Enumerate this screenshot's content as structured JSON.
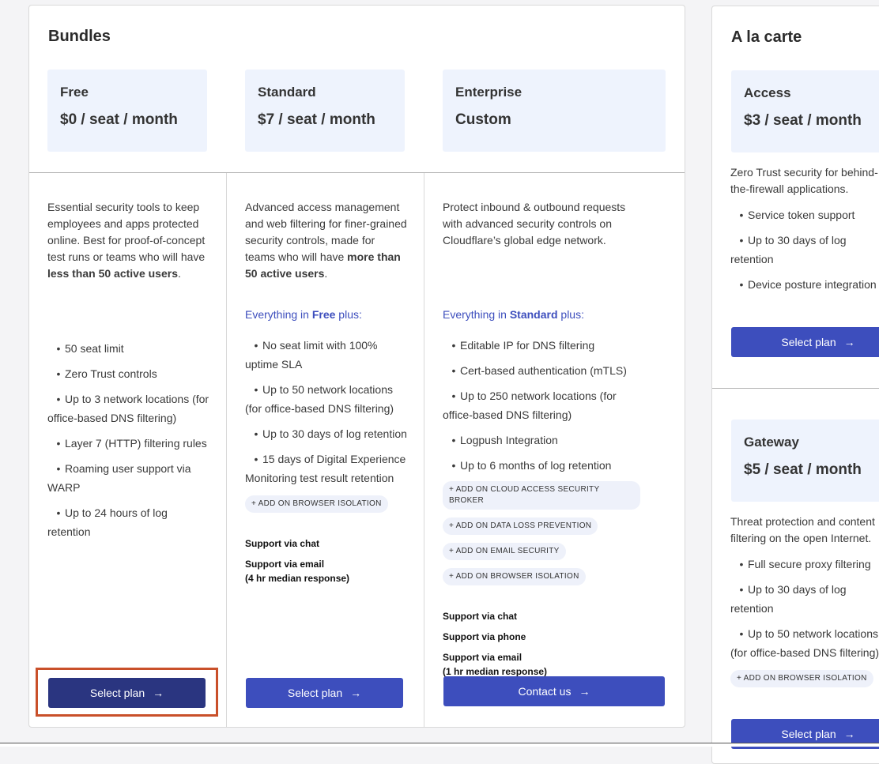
{
  "bundles": {
    "title": "Bundles",
    "plans": [
      {
        "name": "Free",
        "price": "$0 / seat / month",
        "desc_pre": "Essential security tools to keep employees and apps protected online. Best for proof-of-concept test runs or teams who will have ",
        "desc_bold": "less than 50 active users",
        "desc_post": ".",
        "features": [
          "50 seat limit",
          "Zero Trust controls",
          "Up to 3 network locations (for office-based DNS filtering)",
          "Layer 7 (HTTP) filtering rules",
          "Roaming user support via WARP",
          "Up to 24 hours of log retention"
        ],
        "button": "Select plan",
        "selected": true
      },
      {
        "name": "Standard",
        "price": "$7 / seat / month",
        "desc_pre": "Advanced access management and web filtering for finer-grained security controls, made for teams who will have ",
        "desc_bold": "more than 50 active users",
        "desc_post": ".",
        "everything_pre": "Everything in ",
        "everything_bold": "Free",
        "everything_post": " plus:",
        "features": [
          "No seat limit with 100% uptime SLA",
          "Up to 50 network locations (for office-based DNS filtering)",
          "Up to 30 days of log retention",
          "15 days of Digital Experience Monitoring test result retention"
        ],
        "addons": [
          "+ ADD ON BROWSER ISOLATION"
        ],
        "support": [
          "Support via chat",
          "Support via email\n(4 hr median response)"
        ],
        "button": "Select plan"
      },
      {
        "name": "Enterprise",
        "price": "Custom",
        "desc_pre": "Protect inbound & outbound requests with advanced security controls on Cloudflare’s global edge network.",
        "desc_bold": "",
        "desc_post": "",
        "everything_pre": "Everything in ",
        "everything_bold": "Standard",
        "everything_post": " plus:",
        "features": [
          "Editable IP for DNS filtering",
          "Cert-based authentication (mTLS)",
          "Up to 250 network locations (for office-based DNS filtering)",
          "Logpush Integration",
          "Up to 6 months of log retention"
        ],
        "addons": [
          "+ ADD ON CLOUD ACCESS SECURITY BROKER",
          "+ ADD ON DATA LOSS PREVENTION",
          "+ ADD ON EMAIL SECURITY",
          "+ ADD ON BROWSER ISOLATION"
        ],
        "support": [
          "Support via chat",
          "Support via phone",
          "Support via email\n(1 hr median response)"
        ],
        "button": "Contact us"
      }
    ]
  },
  "alacarte": {
    "title": "A la carte",
    "plans": [
      {
        "name": "Access",
        "price": "$3 / seat / month",
        "desc": "Zero Trust security for behind-the-firewall applications.",
        "features": [
          "Service token support",
          "Up to 30 days of log retention",
          "Device posture integration"
        ],
        "button": "Select plan"
      },
      {
        "name": "Gateway",
        "price": "$5 / seat / month",
        "desc": "Threat protection and content filtering on the open Internet.",
        "features": [
          "Full secure proxy filtering",
          "Up to 30 days of log retention",
          "Up to 50 network locations (for office-based DNS filtering)"
        ],
        "addons": [
          "+ ADD ON BROWSER ISOLATION"
        ],
        "button": "Select plan"
      }
    ]
  },
  "colors": {
    "accent": "#3d4ebd",
    "selected": "#2a3580",
    "highlight": "#c9502a",
    "price_box": "#eef3fd"
  },
  "icons": {
    "button_arrow": "arrow-right-icon"
  }
}
